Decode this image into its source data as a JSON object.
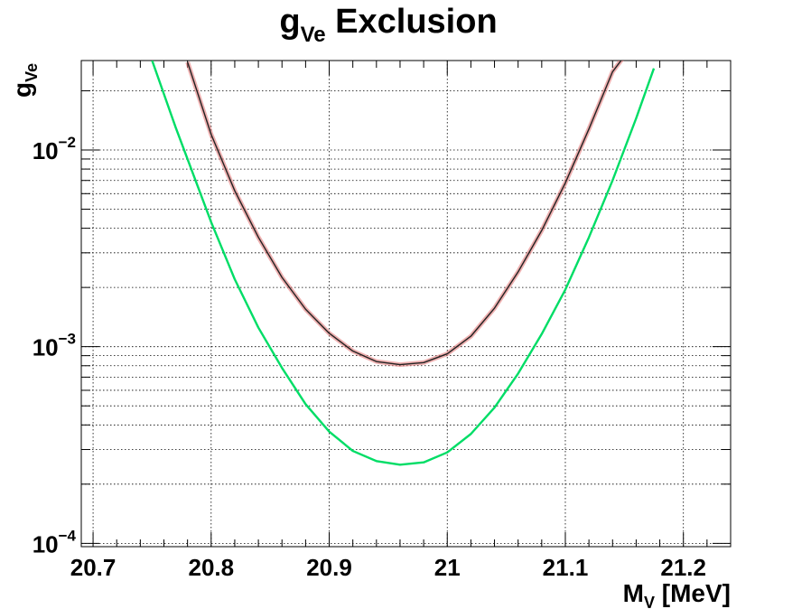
{
  "chart_data": {
    "type": "line",
    "title": {
      "main": "g",
      "sub": "Ve",
      "rest": " Exclusion"
    },
    "xlabel": {
      "main": "M",
      "sub": "V",
      "rest": " [MeV]"
    },
    "ylabel": {
      "main": "g",
      "sub": "Ve"
    },
    "xlim": [
      20.69,
      21.24
    ],
    "ylim": [
      9.62e-05,
      0.0285
    ],
    "yscale": "log",
    "grid": true,
    "x_ticks": [
      {
        "value": 20.7,
        "label": "20.7"
      },
      {
        "value": 20.8,
        "label": "20.8"
      },
      {
        "value": 20.9,
        "label": "20.9"
      },
      {
        "value": 21.0,
        "label": "21"
      },
      {
        "value": 21.1,
        "label": "21.1"
      },
      {
        "value": 21.2,
        "label": "21.2"
      }
    ],
    "y_ticks": [
      {
        "value": 0.0001,
        "base": "10",
        "exp": "−4"
      },
      {
        "value": 0.001,
        "base": "10",
        "exp": "−3"
      },
      {
        "value": 0.01,
        "base": "10",
        "exp": "−2"
      }
    ],
    "series": [
      {
        "color": "#cc1111",
        "x": [
          20.78,
          20.8,
          20.82,
          20.84,
          20.86,
          20.88,
          20.9,
          20.92,
          20.94,
          20.96,
          20.98,
          21.0,
          21.02,
          21.04,
          21.06,
          21.08,
          21.1,
          21.12,
          21.14,
          21.15
        ],
        "y": [
          0.028,
          0.012,
          0.0062,
          0.0036,
          0.00225,
          0.00155,
          0.00117,
          0.00095,
          0.00084,
          0.00081,
          0.00083,
          0.00092,
          0.00113,
          0.00157,
          0.0024,
          0.0039,
          0.0068,
          0.0128,
          0.025,
          0.03
        ]
      },
      {
        "color": "#00dd66",
        "x": [
          20.75,
          20.77,
          20.8,
          20.82,
          20.84,
          20.86,
          20.88,
          20.9,
          20.92,
          20.94,
          20.96,
          20.98,
          21.0,
          21.02,
          21.04,
          21.06,
          21.08,
          21.1,
          21.12,
          21.14,
          21.16,
          21.175
        ],
        "y": [
          0.0285,
          0.013,
          0.0043,
          0.0022,
          0.00125,
          0.00078,
          0.00051,
          0.00037,
          0.000295,
          0.000262,
          0.000251,
          0.000258,
          0.00029,
          0.00036,
          0.00049,
          0.00073,
          0.00116,
          0.00195,
          0.0036,
          0.007,
          0.0145,
          0.026
        ]
      }
    ]
  }
}
